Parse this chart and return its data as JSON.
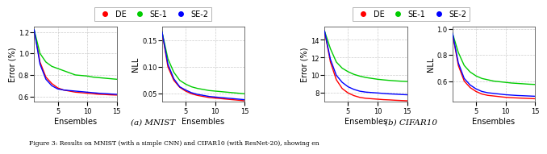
{
  "legend_labels": [
    "DE",
    "SE-1",
    "SE-2"
  ],
  "legend_colors": [
    "#ff0000",
    "#00cc00",
    "#0000ff"
  ],
  "x": [
    1,
    2,
    3,
    4,
    5,
    6,
    7,
    8,
    9,
    10,
    11,
    12,
    13,
    14,
    15
  ],
  "mnist_error_DE": [
    1.22,
    0.92,
    0.78,
    0.72,
    0.68,
    0.66,
    0.65,
    0.64,
    0.635,
    0.63,
    0.625,
    0.62,
    0.618,
    0.615,
    0.613
  ],
  "mnist_error_SE1": [
    1.22,
    1.0,
    0.92,
    0.88,
    0.86,
    0.84,
    0.82,
    0.8,
    0.795,
    0.79,
    0.78,
    0.775,
    0.77,
    0.765,
    0.76
  ],
  "mnist_error_SE2": [
    1.22,
    0.9,
    0.76,
    0.7,
    0.67,
    0.66,
    0.655,
    0.65,
    0.645,
    0.64,
    0.635,
    0.63,
    0.627,
    0.623,
    0.62
  ],
  "mnist_nll_DE": [
    0.165,
    0.1,
    0.075,
    0.062,
    0.055,
    0.05,
    0.047,
    0.045,
    0.043,
    0.042,
    0.041,
    0.04,
    0.039,
    0.038,
    0.037
  ],
  "mnist_nll_SE1": [
    0.165,
    0.115,
    0.09,
    0.075,
    0.068,
    0.063,
    0.06,
    0.058,
    0.056,
    0.055,
    0.054,
    0.053,
    0.052,
    0.051,
    0.05
  ],
  "mnist_nll_SE2": [
    0.165,
    0.105,
    0.078,
    0.063,
    0.057,
    0.052,
    0.049,
    0.047,
    0.045,
    0.044,
    0.043,
    0.042,
    0.041,
    0.04,
    0.039
  ],
  "cifar_error_DE": [
    15.0,
    11.5,
    9.5,
    8.5,
    8.0,
    7.7,
    7.5,
    7.4,
    7.35,
    7.3,
    7.25,
    7.22,
    7.18,
    7.15,
    7.12
  ],
  "cifar_error_SE1": [
    15.0,
    13.0,
    11.5,
    10.8,
    10.4,
    10.1,
    9.9,
    9.75,
    9.65,
    9.55,
    9.48,
    9.42,
    9.37,
    9.33,
    9.3
  ],
  "cifar_error_SE2": [
    15.0,
    11.8,
    10.0,
    9.2,
    8.7,
    8.4,
    8.2,
    8.1,
    8.05,
    8.0,
    7.95,
    7.9,
    7.87,
    7.83,
    7.8
  ],
  "cifar_nll_DE": [
    0.97,
    0.72,
    0.6,
    0.55,
    0.52,
    0.5,
    0.49,
    0.485,
    0.48,
    0.475,
    0.472,
    0.47,
    0.468,
    0.466,
    0.464
  ],
  "cifar_nll_SE1": [
    0.97,
    0.82,
    0.72,
    0.67,
    0.64,
    0.62,
    0.61,
    0.6,
    0.595,
    0.59,
    0.585,
    0.582,
    0.579,
    0.576,
    0.574
  ],
  "cifar_nll_SE2": [
    0.97,
    0.74,
    0.62,
    0.57,
    0.54,
    0.52,
    0.51,
    0.505,
    0.5,
    0.495,
    0.492,
    0.489,
    0.487,
    0.485,
    0.483
  ],
  "mnist_error_ylim": [
    0.55,
    1.25
  ],
  "mnist_error_yticks": [
    0.6,
    0.8,
    1.0,
    1.2
  ],
  "mnist_nll_ylim": [
    0.035,
    0.175
  ],
  "mnist_nll_yticks": [
    0.05,
    0.1,
    0.15
  ],
  "cifar_error_ylim": [
    7.0,
    15.5
  ],
  "cifar_error_yticks": [
    8,
    10,
    12,
    14
  ],
  "cifar_nll_ylim": [
    0.44,
    1.02
  ],
  "cifar_nll_yticks": [
    0.6,
    0.8,
    1.0
  ],
  "xlabel": "Ensembles",
  "ylabel_error": "Error (%)",
  "ylabel_nll": "NLL",
  "xticks": [
    5,
    10,
    15
  ],
  "xlim": [
    1,
    15
  ],
  "caption_a": "(a) MNIST",
  "caption_b": "(b) CIFAR10",
  "caption_full": "Figure 3: Results on MNIST (with a simple CNN) and CIFAR10 (with ResNet-20), showing en",
  "grid_color": "#cccccc",
  "grid_style": "--",
  "linewidth": 1.0
}
